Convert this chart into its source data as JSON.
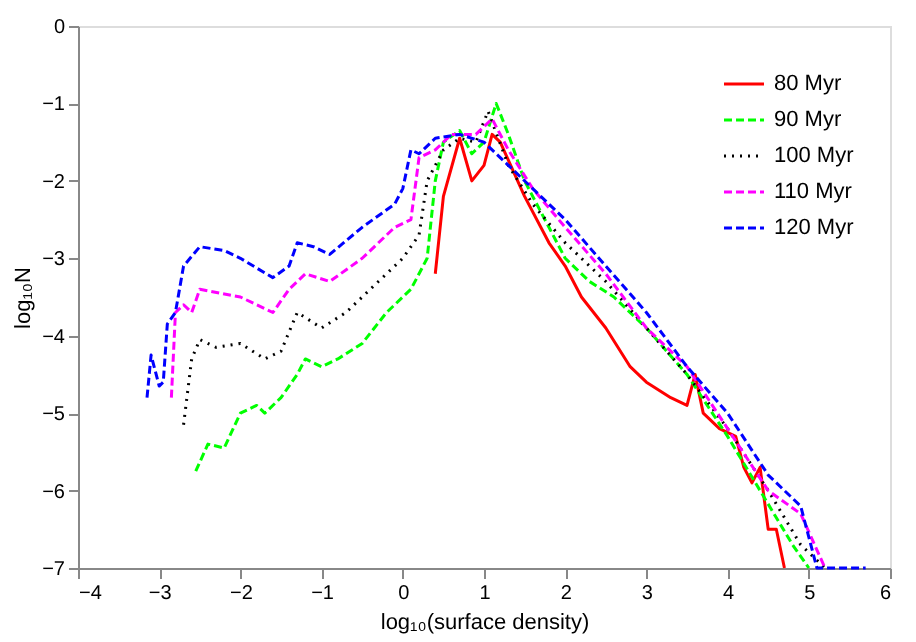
{
  "chart_data": {
    "type": "line",
    "xlabel": "log₁₀(surface density)",
    "ylabel": "log₁₀N",
    "xlim": [
      -4,
      6
    ],
    "xticks": [
      -4,
      -3,
      -2,
      -1,
      0,
      1,
      2,
      3,
      4,
      5,
      6
    ],
    "ylim": [
      -7,
      0
    ],
    "yticks": [
      -7,
      -6,
      -5,
      -4,
      -3,
      -2,
      -1,
      0
    ],
    "grid": false,
    "legend": "top right",
    "marker": "none",
    "series": [
      {
        "name": "80 Myr",
        "color": "#ff0000",
        "line_style": "solid",
        "x": [
          0.4,
          0.5,
          0.7,
          0.85,
          1.0,
          1.1,
          1.2,
          1.5,
          1.8,
          2.0,
          2.2,
          2.5,
          2.8,
          3.0,
          3.3,
          3.5,
          3.6,
          3.7,
          3.9,
          4.1,
          4.2,
          4.3,
          4.4,
          4.5,
          4.6,
          4.7
        ],
        "values": [
          -3.2,
          -2.2,
          -1.45,
          -2.0,
          -1.8,
          -1.4,
          -1.5,
          -2.2,
          -2.8,
          -3.1,
          -3.5,
          -3.9,
          -4.4,
          -4.6,
          -4.8,
          -4.9,
          -4.5,
          -5.0,
          -5.2,
          -5.3,
          -5.7,
          -5.9,
          -5.7,
          -6.5,
          -6.5,
          -7.0
        ]
      },
      {
        "name": "90 Myr",
        "color": "#00ff00",
        "line_style": "dashed",
        "x": [
          -2.55,
          -2.4,
          -2.2,
          -2.0,
          -1.8,
          -1.7,
          -1.5,
          -1.3,
          -1.2,
          -1.0,
          -0.8,
          -0.5,
          -0.2,
          0.1,
          0.3,
          0.4,
          0.5,
          0.7,
          0.85,
          1.0,
          1.15,
          1.3,
          1.5,
          1.8,
          2.0,
          2.3,
          2.6,
          3.0,
          3.5,
          4.0,
          4.4,
          4.8,
          5.0
        ],
        "values": [
          -5.75,
          -5.4,
          -5.45,
          -5.0,
          -4.9,
          -5.0,
          -4.8,
          -4.5,
          -4.3,
          -4.4,
          -4.3,
          -4.1,
          -3.7,
          -3.4,
          -3.0,
          -2.0,
          -1.5,
          -1.35,
          -1.65,
          -1.5,
          -1.0,
          -1.4,
          -2.0,
          -2.6,
          -3.0,
          -3.3,
          -3.5,
          -3.9,
          -4.5,
          -5.3,
          -6.0,
          -6.7,
          -7.0
        ]
      },
      {
        "name": "100 Myr",
        "color": "#000000",
        "line_style": "dotted",
        "x": [
          -2.7,
          -2.6,
          -2.5,
          -2.3,
          -2.0,
          -1.7,
          -1.5,
          -1.3,
          -1.0,
          -0.7,
          -0.3,
          0.0,
          0.2,
          0.3,
          0.5,
          0.7,
          0.9,
          1.05,
          1.3,
          1.6,
          2.0,
          2.5,
          3.0,
          3.5,
          4.0,
          4.5,
          4.9,
          5.2
        ],
        "values": [
          -5.15,
          -4.3,
          -4.05,
          -4.15,
          -4.1,
          -4.3,
          -4.2,
          -3.7,
          -3.9,
          -3.7,
          -3.3,
          -3.0,
          -2.7,
          -2.0,
          -1.6,
          -1.45,
          -1.5,
          -1.1,
          -1.8,
          -2.3,
          -2.8,
          -3.3,
          -3.9,
          -4.5,
          -5.2,
          -6.0,
          -6.7,
          -7.0
        ]
      },
      {
        "name": "110 Myr",
        "color": "#ff00ff",
        "line_style": "dashed",
        "x": [
          -2.85,
          -2.8,
          -2.7,
          -2.6,
          -2.5,
          -2.0,
          -1.6,
          -1.4,
          -1.2,
          -0.9,
          -0.5,
          -0.1,
          0.1,
          0.2,
          0.4,
          0.6,
          0.9,
          1.1,
          1.3,
          1.6,
          2.0,
          2.5,
          3.0,
          3.5,
          4.0,
          4.5,
          4.9,
          5.2
        ],
        "values": [
          -4.8,
          -3.7,
          -3.6,
          -3.7,
          -3.4,
          -3.5,
          -3.7,
          -3.4,
          -3.2,
          -3.3,
          -3.0,
          -2.6,
          -2.5,
          -1.7,
          -1.6,
          -1.4,
          -1.4,
          -1.2,
          -1.6,
          -2.1,
          -2.6,
          -3.2,
          -3.9,
          -4.4,
          -5.2,
          -6.0,
          -6.3,
          -7.0
        ]
      },
      {
        "name": "120 Myr",
        "color": "#0000ff",
        "line_style": "dashed",
        "x": [
          -3.15,
          -3.1,
          -3.0,
          -2.95,
          -2.9,
          -2.8,
          -2.7,
          -2.5,
          -2.2,
          -2.0,
          -1.6,
          -1.4,
          -1.3,
          -1.1,
          -0.9,
          -0.5,
          -0.1,
          0.0,
          0.1,
          0.2,
          0.4,
          0.7,
          1.0,
          1.3,
          1.6,
          2.0,
          2.5,
          3.0,
          3.5,
          4.0,
          4.5,
          4.9,
          5.1,
          5.7
        ],
        "values": [
          -4.8,
          -4.25,
          -4.65,
          -4.6,
          -3.85,
          -3.7,
          -3.1,
          -2.85,
          -2.9,
          -3.0,
          -3.25,
          -3.1,
          -2.8,
          -2.85,
          -2.95,
          -2.6,
          -2.3,
          -2.1,
          -1.6,
          -1.65,
          -1.45,
          -1.4,
          -1.5,
          -1.8,
          -2.1,
          -2.5,
          -3.1,
          -3.7,
          -4.4,
          -5.0,
          -5.8,
          -6.2,
          -7.0,
          -7.0
        ]
      }
    ]
  }
}
